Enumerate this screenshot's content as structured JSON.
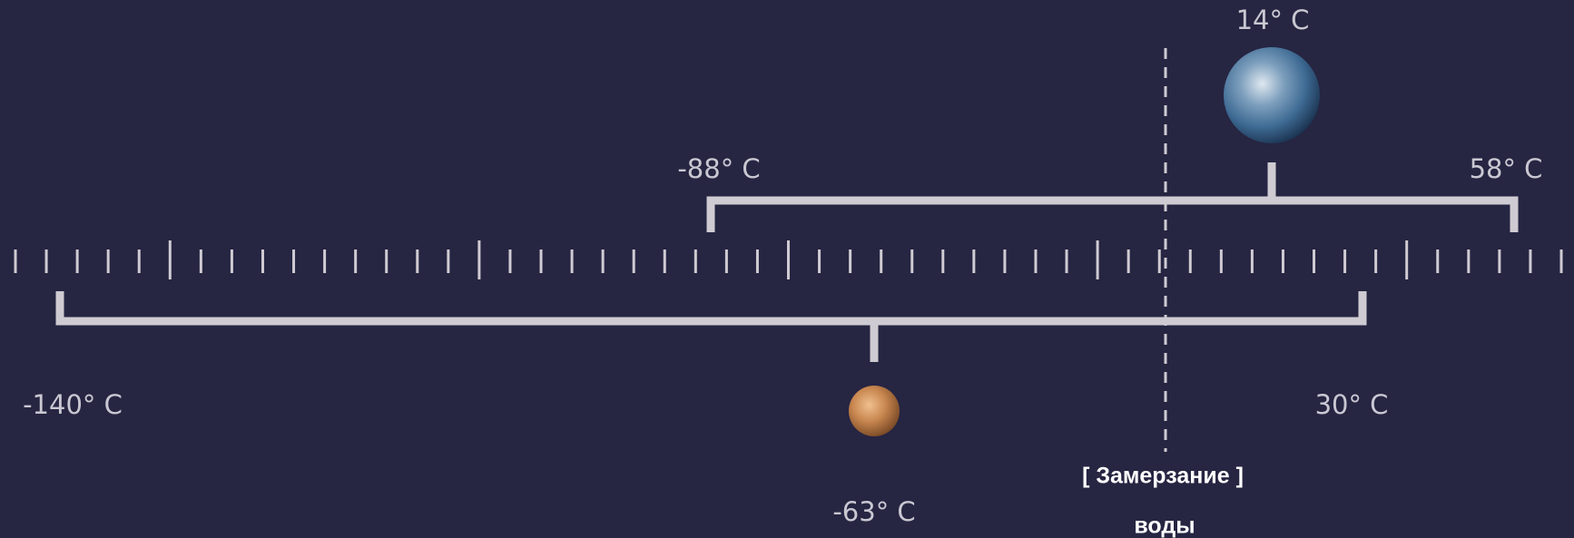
{
  "earth": {
    "average": "14° C",
    "min": "-88° C",
    "max": "58° C"
  },
  "mars": {
    "average": "-63° C",
    "min": "-140° C",
    "max": "30° C"
  },
  "water_freezing": {
    "label": "[ Замерзание ]",
    "sublabel": "воды"
  }
}
